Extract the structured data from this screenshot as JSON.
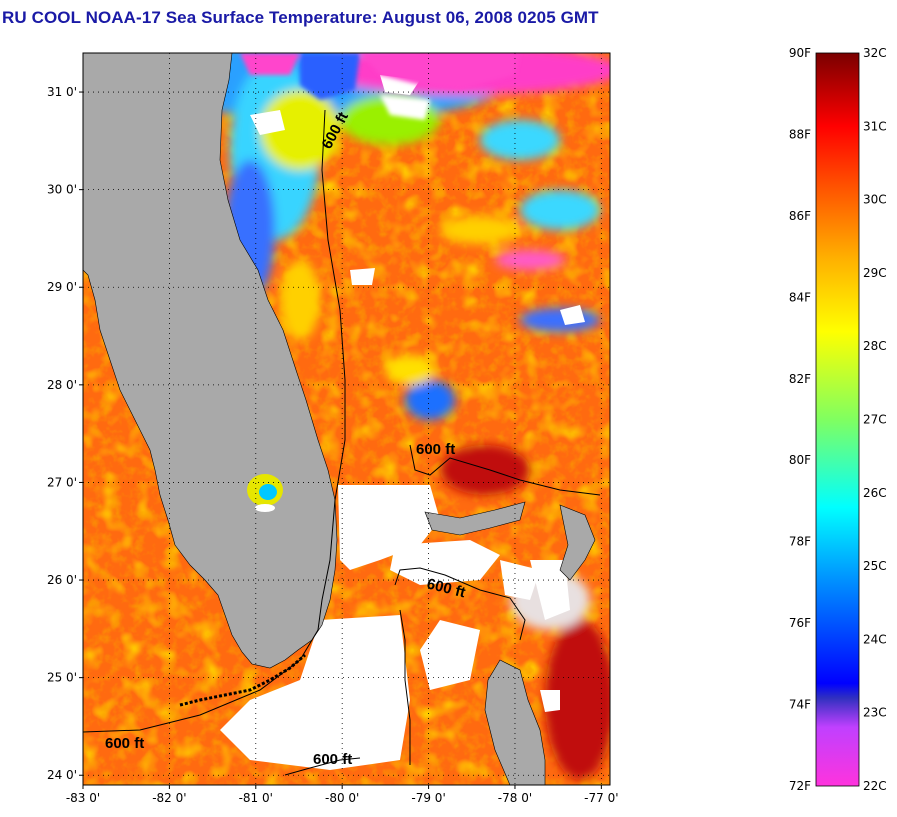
{
  "title": "RU COOL  NOAA-17  Sea Surface Temperature:  August 06, 2008 0205 GMT",
  "map": {
    "lat_labels": [
      "31 0'",
      "30 0'",
      "29 0'",
      "28 0'",
      "27 0'",
      "26 0'",
      "25 0'",
      "24 0'"
    ],
    "lon_labels": [
      "-83 0'",
      "-82 0'",
      "-81 0'",
      "-80 0'",
      "-79 0'",
      "-78 0'",
      "-77 0'"
    ],
    "lat_range": [
      23.9,
      31.4
    ],
    "lon_range": [
      -83.0,
      -76.9
    ],
    "grid": "dotted",
    "land_color": "#a9a9a9",
    "cloud_color": "#ffffff",
    "isobath_label": "600 ft",
    "isobath_label_count": 4
  },
  "colorbar": {
    "fahrenheit_labels": [
      "90F",
      "88F",
      "86F",
      "84F",
      "82F",
      "80F",
      "78F",
      "76F",
      "74F",
      "72F"
    ],
    "celsius_labels": [
      "32C",
      "31C",
      "30C",
      "29C",
      "28C",
      "27C",
      "26C",
      "25C",
      "24C",
      "23C",
      "22C"
    ],
    "range_c": [
      22,
      32
    ],
    "range_f": [
      72,
      90
    ]
  }
}
